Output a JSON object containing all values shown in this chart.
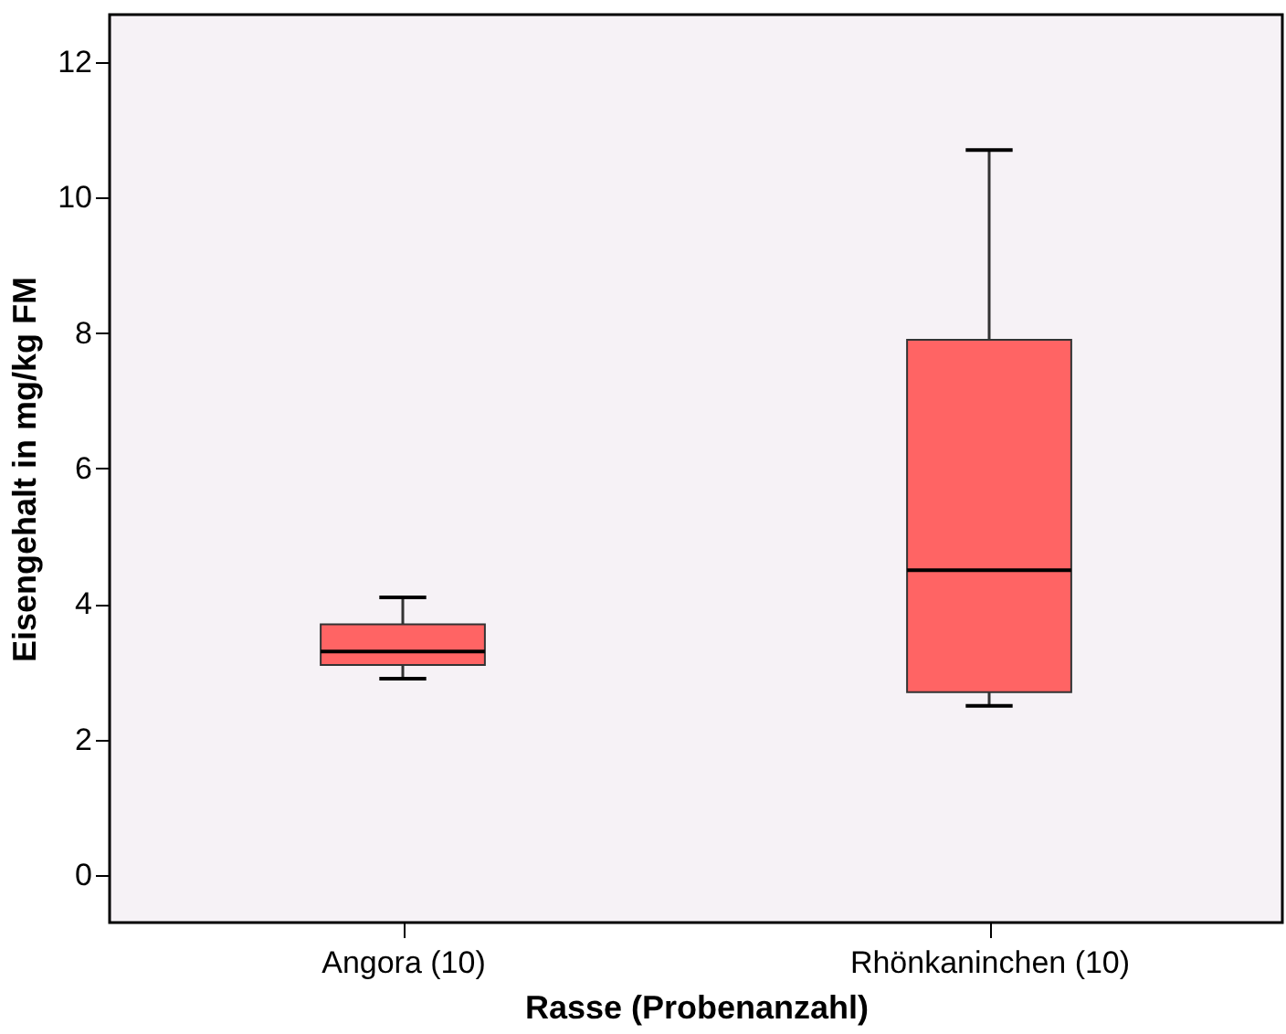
{
  "chart_data": {
    "type": "box",
    "xlabel": "Rasse (Probenanzahl)",
    "ylabel": "Eisengehalt in mg/kg FM",
    "categories": [
      "Angora (10)",
      "Rhönkaninchen (10)"
    ],
    "series": [
      {
        "color": "#ff6464",
        "boxes": [
          {
            "low": 2.9,
            "q1": 3.1,
            "median": 3.3,
            "q3": 3.7,
            "high": 4.1
          },
          {
            "low": 2.5,
            "q1": 2.7,
            "median": 4.5,
            "q3": 7.9,
            "high": 10.7
          }
        ]
      }
    ],
    "ylim": [
      -0.7,
      12.7
    ],
    "yticks": [
      0,
      2,
      4,
      6,
      8,
      10,
      12
    ],
    "grid": false
  }
}
